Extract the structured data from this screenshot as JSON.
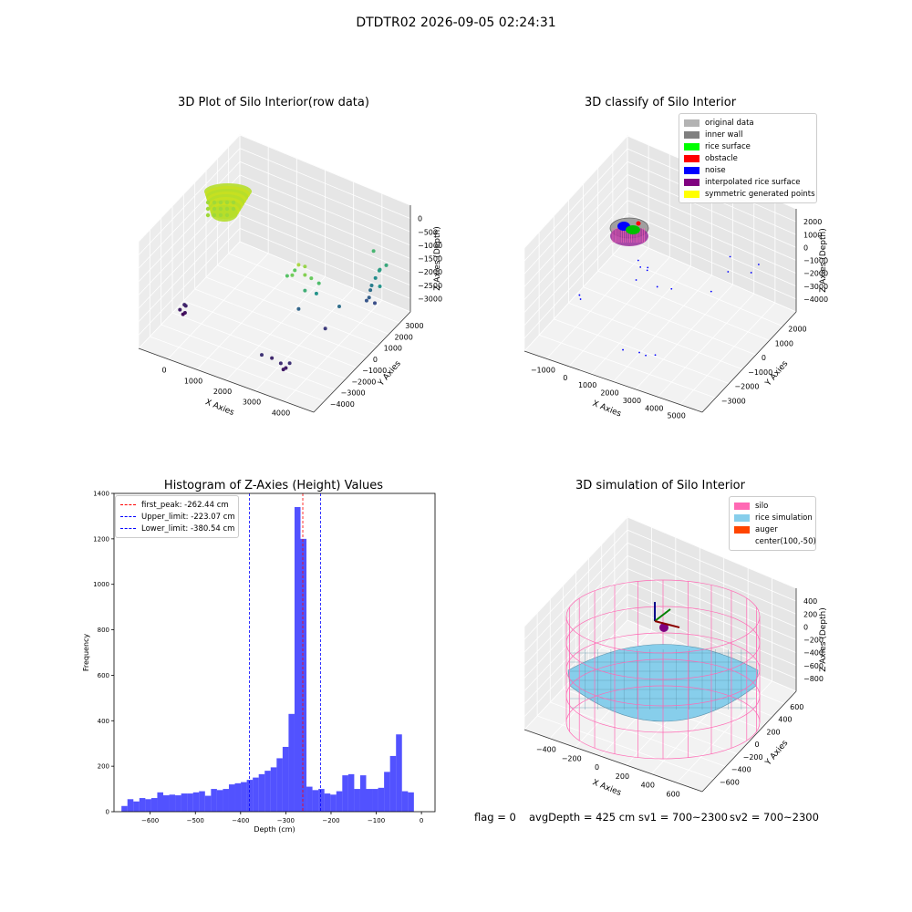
{
  "suptitle": "DTDTR02 2026-09-05 02:24:31",
  "footer": {
    "flag": "flag = 0",
    "avg": "avgDepth = 425 cm",
    "sv1": "sv1 = 700~2300",
    "sv2": "sv2 = 700~2300"
  },
  "chart_data": [
    {
      "type": "scatter",
      "title": "3D Plot of Silo Interior(row data)",
      "xlabel": "X Axies",
      "ylabel": "Y Axies",
      "zlabel": "Z Axies (Depth)",
      "xticks": [
        "0",
        "1000",
        "2000",
        "3000",
        "4000"
      ],
      "yticks": [
        "−4000",
        "−3000",
        "−2000",
        "−1000",
        "0",
        "1000",
        "2000",
        "3000"
      ],
      "zticks": [
        "−3000",
        "−2500",
        "−2000",
        "−1500",
        "−1000",
        "−500",
        "0"
      ],
      "xlim": [
        -400,
        4200
      ],
      "ylim": [
        -4200,
        3400
      ],
      "zlim": [
        -3300,
        200
      ],
      "colormap": "viridis",
      "points": [
        {
          "x": 2800,
          "y": -1200,
          "z": -400
        },
        {
          "x": 2900,
          "y": -1000,
          "z": -500
        },
        {
          "x": 3000,
          "y": -1300,
          "z": -600
        },
        {
          "x": 2600,
          "y": -900,
          "z": -800
        },
        {
          "x": 3100,
          "y": -1100,
          "z": -750
        },
        {
          "x": 2700,
          "y": -1400,
          "z": -700
        },
        {
          "x": 2500,
          "y": -1200,
          "z": -900
        },
        {
          "x": 3200,
          "y": -800,
          "z": -1000
        },
        {
          "x": 2950,
          "y": -1150,
          "z": -1200
        },
        {
          "x": 3000,
          "y": -400,
          "z": -1600
        },
        {
          "x": 2600,
          "y": -600,
          "z": -2200
        },
        {
          "x": 3400,
          "y": 200,
          "z": -2100
        },
        {
          "x": 3200,
          "y": -300,
          "z": -2700
        },
        {
          "x": 4100,
          "y": 1300,
          "z": -1600
        },
        {
          "x": 3600,
          "y": 2300,
          "z": -1100
        },
        {
          "x": 3800,
          "y": 1800,
          "z": -2500
        },
        {
          "x": 4000,
          "y": 2100,
          "z": -1300
        },
        {
          "x": 3900,
          "y": 1900,
          "z": -1400
        },
        {
          "x": 3850,
          "y": 2000,
          "z": -1500
        },
        {
          "x": 3800,
          "y": 1850,
          "z": -1700
        },
        {
          "x": 3750,
          "y": 1700,
          "z": -1900
        },
        {
          "x": 3700,
          "y": 1750,
          "z": -2100
        },
        {
          "x": 3700,
          "y": 1650,
          "z": -2300
        },
        {
          "x": 3650,
          "y": 1600,
          "z": -2400
        },
        {
          "x": -100,
          "y": -1500,
          "z": -2900
        },
        {
          "x": -150,
          "y": -1700,
          "z": -3000
        },
        {
          "x": -50,
          "y": -1600,
          "z": -3100
        },
        {
          "x": -120,
          "y": -1550,
          "z": -3200
        },
        {
          "x": -80,
          "y": -1450,
          "z": -2950
        },
        {
          "x": 2400,
          "y": -2900,
          "z": -2800
        },
        {
          "x": 2600,
          "y": -2700,
          "z": -2900
        },
        {
          "x": 2900,
          "y": -2900,
          "z": -2850
        },
        {
          "x": 3000,
          "y": -2800,
          "z": -3000
        },
        {
          "x": 3100,
          "y": -2800,
          "z": -2800
        },
        {
          "x": 2950,
          "y": -2850,
          "z": -3050
        }
      ]
    },
    {
      "type": "scatter",
      "title": "3D classify of Silo Interior",
      "xlabel": "X Axies",
      "ylabel": "Y Axies",
      "zlabel": "Z Axies (Depth)",
      "xticks": [
        "−1000",
        "0",
        "1000",
        "2000",
        "3000",
        "4000",
        "5000"
      ],
      "yticks": [
        "−3000",
        "−2000",
        "−1000",
        "0",
        "1000",
        "2000"
      ],
      "zticks": [
        "−4000",
        "−3000",
        "−2000",
        "−1000",
        "0",
        "1000",
        "2000"
      ],
      "xlim": [
        -1500,
        5200
      ],
      "ylim": [
        -3500,
        2500
      ],
      "zlim": [
        -4500,
        2300
      ],
      "legend": [
        {
          "label": "original data",
          "color": "#b3b3b3"
        },
        {
          "label": "inner wall",
          "color": "#808080"
        },
        {
          "label": "rice surface",
          "color": "#00ff00"
        },
        {
          "label": "obstacle",
          "color": "#ff0000"
        },
        {
          "label": "noise",
          "color": "#0000ff"
        },
        {
          "label": "interpolated rice surface",
          "color": "#800080"
        },
        {
          "label": "symmetric generated points",
          "color": "#ffff00"
        }
      ],
      "noise_points": [
        {
          "x": 900,
          "y": -300,
          "z": -600
        },
        {
          "x": 1100,
          "y": -500,
          "z": -700
        },
        {
          "x": 1300,
          "y": -400,
          "z": -900
        },
        {
          "x": 1200,
          "y": -200,
          "z": -1000
        },
        {
          "x": 1000,
          "y": -600,
          "z": -1500
        },
        {
          "x": 1500,
          "y": -100,
          "z": -2200
        },
        {
          "x": 1800,
          "y": 300,
          "z": -2600
        },
        {
          "x": 3300,
          "y": 1500,
          "z": -900
        },
        {
          "x": 3400,
          "y": 1200,
          "z": -1500
        },
        {
          "x": 3800,
          "y": 2000,
          "z": -2200
        },
        {
          "x": 4200,
          "y": 1800,
          "z": -1200
        },
        {
          "x": 3000,
          "y": 800,
          "z": -2600
        },
        {
          "x": -900,
          "y": -1000,
          "z": -3200
        },
        {
          "x": -800,
          "y": -1100,
          "z": -3300
        },
        {
          "x": 1800,
          "y": -2800,
          "z": -3200
        },
        {
          "x": 2300,
          "y": -2600,
          "z": -3300
        },
        {
          "x": 2600,
          "y": -2700,
          "z": -3200
        },
        {
          "x": 2900,
          "y": -2600,
          "z": -3100
        }
      ]
    },
    {
      "type": "bar",
      "title": "Histogram of Z-Axies (Height) Values",
      "xlabel": "Depth (cm)",
      "ylabel": "Frequency",
      "xlim": [
        -680,
        30
      ],
      "ylim": [
        0,
        1400
      ],
      "xticks": [
        -600,
        -500,
        -400,
        -300,
        -200,
        -100,
        0
      ],
      "xtick_labels": [
        "−600",
        "−500",
        "−400",
        "−300",
        "−200",
        "−100",
        "0"
      ],
      "yticks": [
        0,
        200,
        400,
        600,
        800,
        1000,
        1200,
        1400
      ],
      "bin_start": -663.5,
      "bin_width": 13.2,
      "values": [
        25,
        55,
        45,
        60,
        55,
        60,
        85,
        72,
        75,
        72,
        80,
        80,
        85,
        90,
        70,
        100,
        95,
        100,
        120,
        125,
        130,
        140,
        150,
        165,
        180,
        195,
        235,
        285,
        430,
        1340,
        1200,
        110,
        95,
        100,
        80,
        75,
        90,
        160,
        165,
        100,
        160,
        100,
        100,
        105,
        175,
        245,
        340,
        90,
        85
      ],
      "vlines": [
        {
          "x": -262.44,
          "color": "#ff0000",
          "label": "first_peak: -262.44 cm"
        },
        {
          "x": -223.07,
          "color": "#0000ff",
          "label": "Upper_limit: -223.07 cm"
        },
        {
          "x": -380.54,
          "color": "#0000ff",
          "label": "Lower_limit: -380.54 cm"
        }
      ]
    },
    {
      "type": "surface",
      "title": "3D simulation of Silo Interior",
      "xlabel": "X Axies",
      "ylabel": "Y Axies",
      "zlabel": "Z Axies (Depth)",
      "xticks": [
        "−400",
        "−200",
        "0",
        "200",
        "400",
        "600"
      ],
      "yticks": [
        "−600",
        "−400",
        "−200",
        "0",
        "200",
        "400",
        "600"
      ],
      "zticks": [
        "−800",
        "−600",
        "−400",
        "−200",
        "0",
        "200",
        "400"
      ],
      "xlim": [
        -500,
        700
      ],
      "ylim": [
        -700,
        700
      ],
      "zlim": [
        -900,
        500
      ],
      "silo": {
        "cx": 100,
        "cy": -50,
        "radius": 550,
        "top": 400,
        "bottom": -1000
      },
      "rice_level": -425,
      "legend": [
        {
          "label": "silo",
          "color": "#ff69b4"
        },
        {
          "label": "rice simulation",
          "color": "#87ceeb"
        },
        {
          "label": "auger",
          "color": "#ff4500"
        },
        {
          "label": "center(100,-50)",
          "color": ""
        }
      ]
    }
  ]
}
